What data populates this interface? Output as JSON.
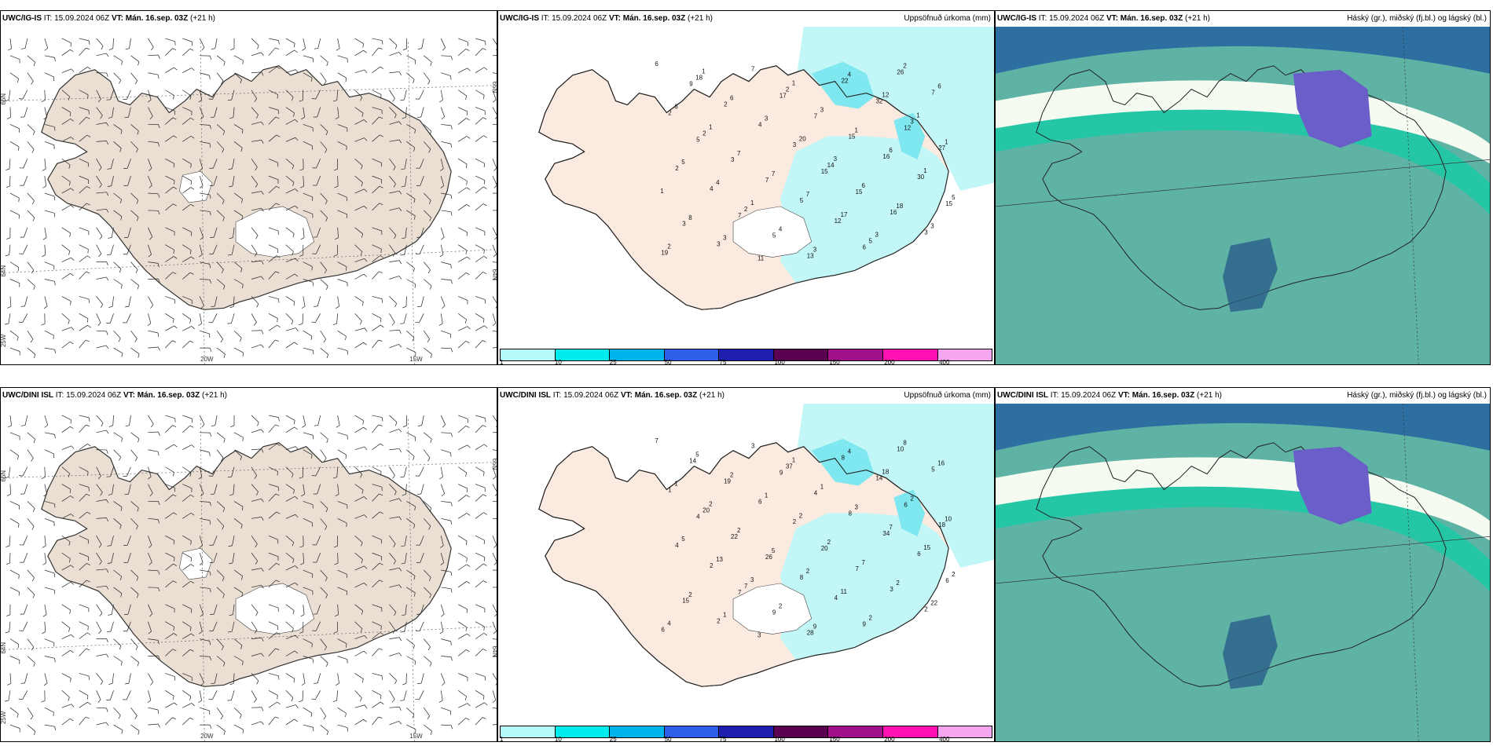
{
  "row_top": {
    "wind": {
      "model": "UWC/IG-IS",
      "it": "IT: 15.09.2024 06Z",
      "vt_label": "VT:",
      "vt": "Mán. 16.sep. 03Z",
      "lead": "(+21 h)",
      "title": ""
    },
    "precip": {
      "model": "UWC/IG-IS",
      "it": "IT: 15.09.2024 06Z",
      "vt_label": "VT:",
      "vt": "Mán. 16.sep. 03Z",
      "lead": "(+21 h)",
      "title": "Uppsöfnuð úrkoma (mm)"
    },
    "cloud": {
      "model": "UWC/IG-IS",
      "it": "IT: 15.09.2024 06Z",
      "vt_label": "VT:",
      "vt": "Mán. 16.sep. 03Z",
      "lead": "(+21 h)",
      "title": "Háský (gr.), miðský (fj.bl.) og lágský (bl.)"
    },
    "precip_points": [
      "6",
      "5",
      "7",
      "17",
      "15",
      "6",
      "12",
      "15",
      "9",
      "3",
      "5",
      "7",
      "15",
      "26",
      "27",
      "3",
      "2",
      "7",
      "13",
      "15",
      "16",
      "7",
      "2",
      "3",
      "4",
      "5",
      "22",
      "16",
      "3",
      "2",
      "4",
      "7",
      "3",
      "12",
      "32",
      "30",
      "19",
      "2",
      "2",
      "2",
      "14",
      "5",
      "3",
      "5",
      "18",
      "7",
      "4",
      "3",
      "6",
      "2",
      "1",
      "8",
      "6",
      "7",
      "3",
      "1",
      "18",
      "6",
      "5",
      "3",
      "3",
      "7",
      "4",
      "6",
      "3",
      "6",
      "4",
      "11",
      "20",
      "17",
      "12",
      "1",
      "2",
      "1",
      "1",
      "1",
      "3",
      "3",
      "1",
      "1",
      "1"
    ]
  },
  "row_bottom": {
    "wind": {
      "model": "UWC/DINI ISL",
      "it": "IT: 15.09.2024 06Z",
      "vt_label": "VT:",
      "vt": "Mán. 16.sep. 03Z",
      "lead": "(+21 h)",
      "title": ""
    },
    "precip": {
      "model": "UWC/DINI ISL",
      "it": "IT: 15.09.2024 06Z",
      "vt_label": "VT:",
      "vt": "Mán. 16.sep. 03Z",
      "lead": "(+21 h)",
      "title": "Uppsöfnuð úrkoma (mm)"
    },
    "cloud": {
      "model": "UWC/DINI ISL",
      "it": "IT: 15.09.2024 06Z",
      "vt_label": "VT:",
      "vt": "Mán. 16.sep. 03Z",
      "lead": "(+21 h)",
      "title": "Háský (gr.), miðský (fj.bl.) og lágský (bl.)"
    },
    "precip_points": [
      "7",
      "4",
      "7",
      "9",
      "20",
      "9",
      "6",
      "6",
      "14",
      "22",
      "9",
      "4",
      "7",
      "10",
      "18",
      "15",
      "19",
      "26",
      "28",
      "8",
      "3",
      "5",
      "4",
      "2",
      "6",
      "8",
      "8",
      "34",
      "2",
      "1",
      "2",
      "3",
      "2",
      "4",
      "14",
      "6",
      "6",
      "20",
      "7",
      "37",
      "2",
      "2",
      "2",
      "2",
      "5",
      "2",
      "2",
      "1",
      "7",
      "8",
      "10",
      "2",
      "2",
      "5",
      "9",
      "3",
      "2",
      "16",
      "5",
      "1",
      "1",
      "2",
      "4",
      "7",
      "22",
      "1",
      "13",
      "3",
      "2",
      "11",
      "18",
      "15",
      "4",
      "2",
      "3",
      "1"
    ]
  },
  "wind_axis": {
    "lon_w1": "20W",
    "lon_w2": "15W",
    "lat_66": "66N",
    "lat_64": "64N",
    "lon_25": "25W",
    "lat_65r": "65N",
    "lat_64r": "64N"
  },
  "colorbar": {
    "colors": [
      "#b8fafa",
      "#00ecec",
      "#00b4ee",
      "#2d5fe8",
      "#2020b0",
      "#5a0050",
      "#a0108a",
      "#ff10b0",
      "#f4a6ee"
    ],
    "ticks": [
      "1",
      "10",
      "25",
      "50",
      "75",
      "100",
      "150",
      "200",
      "400"
    ]
  },
  "colors": {
    "land": "#eadfd2",
    "land_precip": "#fbeadf",
    "ocean": "#ffffff",
    "precip_light": "#c3f6f6",
    "precip_mid": "#7fe7ef",
    "cloud_sea": "#5fb3a5",
    "cloud_band": "#25c6a6",
    "cloud_high": "#6a5fc8"
  }
}
